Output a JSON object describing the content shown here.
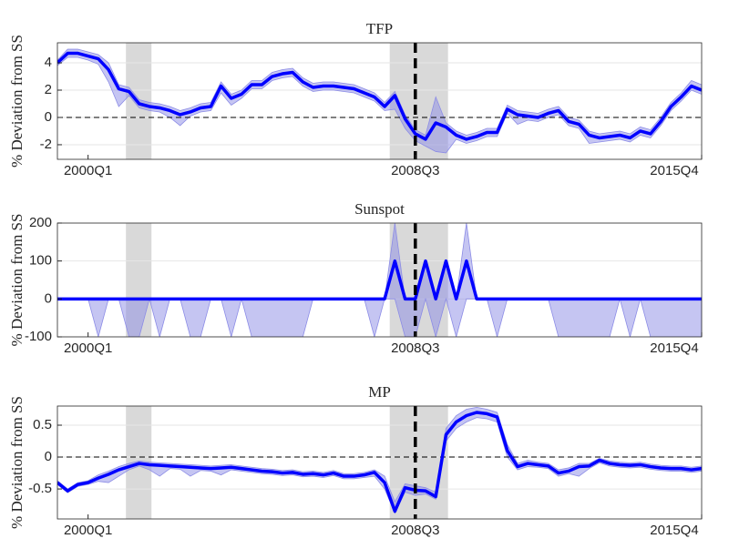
{
  "chart_data": [
    {
      "type": "line",
      "title": "TFP",
      "ylabel": "% Deviation from SS",
      "categories": [
        null,
        null,
        null,
        "2000Q1",
        null,
        null,
        null,
        null,
        null,
        null,
        null,
        null,
        null,
        null,
        null,
        null,
        null,
        null,
        null,
        null,
        null,
        null,
        null,
        null,
        null,
        null,
        null,
        null,
        null,
        null,
        null,
        null,
        null,
        null,
        null,
        "2008Q3",
        null,
        null,
        null,
        null,
        null,
        null,
        null,
        null,
        null,
        null,
        null,
        null,
        null,
        null,
        null,
        null,
        null,
        null,
        null,
        null,
        null,
        null,
        null,
        null,
        null,
        null,
        null,
        "2015Q4"
      ],
      "values": [
        4.0,
        4.7,
        4.7,
        4.5,
        4.3,
        3.5,
        2.1,
        1.9,
        1.0,
        0.8,
        0.7,
        0.5,
        0.2,
        0.4,
        0.7,
        0.8,
        2.3,
        1.4,
        1.7,
        2.4,
        2.4,
        3.0,
        3.2,
        3.3,
        2.6,
        2.2,
        2.3,
        2.3,
        2.2,
        2.1,
        1.8,
        1.5,
        0.8,
        1.6,
        -0.1,
        -1.2,
        -1.6,
        -0.4,
        -0.7,
        -1.3,
        -1.6,
        -1.4,
        -1.1,
        -1.1,
        0.6,
        0.2,
        0.1,
        0.0,
        0.3,
        0.5,
        -0.3,
        -0.5,
        -1.3,
        -1.5,
        -1.4,
        -1.3,
        -1.5,
        -1.0,
        -1.2,
        -0.3,
        0.8,
        1.5,
        2.3,
        2.0
      ],
      "band_lower": [
        3.8,
        4.4,
        4.4,
        4.2,
        3.9,
        2.6,
        0.8,
        1.6,
        0.7,
        0.5,
        0.4,
        0.0,
        -0.6,
        0.1,
        0.4,
        0.5,
        1.8,
        0.9,
        1.4,
        2.1,
        2.1,
        2.7,
        2.9,
        3.0,
        2.3,
        1.9,
        2.0,
        2.0,
        1.9,
        1.8,
        1.5,
        1.2,
        0.5,
        0.6,
        -0.8,
        -1.7,
        -2.1,
        -2.5,
        -2.6,
        -1.6,
        -1.9,
        -1.7,
        -1.4,
        -1.4,
        0.3,
        -0.5,
        -0.2,
        -0.3,
        0.0,
        0.2,
        -0.6,
        -0.8,
        -1.9,
        -1.8,
        -1.7,
        -1.6,
        -1.8,
        -1.3,
        -1.5,
        -0.6,
        0.5,
        1.2,
        2.0,
        1.7
      ],
      "band_upper": [
        4.2,
        5.0,
        5.0,
        4.8,
        4.6,
        4.0,
        2.4,
        2.2,
        1.3,
        1.1,
        1.0,
        0.8,
        0.5,
        0.7,
        1.0,
        1.1,
        2.6,
        1.7,
        2.0,
        2.7,
        2.7,
        3.3,
        3.5,
        3.6,
        2.9,
        2.5,
        2.6,
        2.6,
        2.5,
        2.4,
        2.1,
        1.8,
        1.1,
        1.9,
        0.2,
        -0.9,
        -1.3,
        1.5,
        -0.4,
        -1.0,
        -1.3,
        -1.1,
        -0.8,
        -0.8,
        0.9,
        0.5,
        0.4,
        0.3,
        0.6,
        0.8,
        0.0,
        -0.2,
        -1.0,
        -1.2,
        -1.1,
        -1.0,
        -1.2,
        -0.7,
        -0.9,
        0.0,
        1.1,
        1.8,
        2.7,
        2.4
      ],
      "color": "#0000ff",
      "band_color": "#8c8ce6",
      "shade_color": "#d9d9d9",
      "shaded": [
        [
          6.7,
          9.2
        ],
        [
          32.5,
          38.2
        ]
      ],
      "vline": 35,
      "hline": 0,
      "ylim": [
        -3.07,
        5.47
      ],
      "yticks": [
        -2,
        0,
        2,
        4
      ],
      "grid": true
    },
    {
      "type": "line",
      "title": "Sunspot",
      "ylabel": "% Deviation from SS",
      "categories": [
        null,
        null,
        null,
        "2000Q1",
        null,
        null,
        null,
        null,
        null,
        null,
        null,
        null,
        null,
        null,
        null,
        null,
        null,
        null,
        null,
        null,
        null,
        null,
        null,
        null,
        null,
        null,
        null,
        null,
        null,
        null,
        null,
        null,
        null,
        null,
        null,
        "2008Q3",
        null,
        null,
        null,
        null,
        null,
        null,
        null,
        null,
        null,
        null,
        null,
        null,
        null,
        null,
        null,
        null,
        null,
        null,
        null,
        null,
        null,
        null,
        null,
        null,
        null,
        null,
        null,
        "2015Q4"
      ],
      "values": [
        0,
        0,
        0,
        0,
        0,
        0,
        0,
        0,
        0,
        0,
        0,
        0,
        0,
        0,
        0,
        0,
        0,
        0,
        0,
        0,
        0,
        0,
        0,
        0,
        0,
        0,
        0,
        0,
        0,
        0,
        0,
        0,
        0,
        100,
        0,
        0,
        100,
        0,
        100,
        0,
        100,
        0,
        0,
        0,
        0,
        0,
        0,
        0,
        0,
        0,
        0,
        0,
        0,
        0,
        0,
        0,
        0,
        0,
        0,
        0,
        0,
        0,
        0,
        0
      ],
      "band_lower": [
        0,
        0,
        0,
        0,
        -100,
        0,
        0,
        -100,
        -100,
        0,
        -100,
        0,
        0,
        -100,
        -100,
        0,
        0,
        -100,
        0,
        -100,
        -100,
        -100,
        -100,
        -100,
        -100,
        0,
        0,
        0,
        0,
        0,
        0,
        -100,
        0,
        0,
        -100,
        -100,
        0,
        -100,
        0,
        -100,
        0,
        0,
        0,
        -100,
        0,
        0,
        0,
        0,
        0,
        -100,
        -100,
        -100,
        -100,
        -100,
        -100,
        0,
        -100,
        0,
        -100,
        -100,
        -100,
        -100,
        -100,
        -100
      ],
      "band_upper": [
        0,
        0,
        0,
        0,
        0,
        0,
        0,
        0,
        0,
        0,
        0,
        0,
        0,
        0,
        0,
        0,
        0,
        0,
        0,
        0,
        0,
        0,
        0,
        0,
        0,
        0,
        0,
        0,
        0,
        0,
        0,
        0,
        0,
        200,
        0,
        0,
        100,
        0,
        100,
        0,
        200,
        0,
        0,
        0,
        0,
        0,
        0,
        0,
        0,
        0,
        0,
        0,
        0,
        0,
        0,
        0,
        0,
        0,
        0,
        0,
        0,
        0,
        0,
        0
      ],
      "color": "#0000ff",
      "band_color": "#8c8ce6",
      "shade_color": "#d9d9d9",
      "shaded": [
        [
          6.7,
          9.2
        ],
        [
          32.5,
          38.2
        ]
      ],
      "vline": 35,
      "ylim": [
        -100,
        200
      ],
      "yticks": [
        -100,
        0,
        100,
        200
      ],
      "grid": true
    },
    {
      "type": "line",
      "title": "MP",
      "ylabel": "% Deviation from SS",
      "categories": [
        null,
        null,
        null,
        "2000Q1",
        null,
        null,
        null,
        null,
        null,
        null,
        null,
        null,
        null,
        null,
        null,
        null,
        null,
        null,
        null,
        null,
        null,
        null,
        null,
        null,
        null,
        null,
        null,
        null,
        null,
        null,
        null,
        null,
        null,
        null,
        null,
        "2008Q3",
        null,
        null,
        null,
        null,
        null,
        null,
        null,
        null,
        null,
        null,
        null,
        null,
        null,
        null,
        null,
        null,
        null,
        null,
        null,
        null,
        null,
        null,
        null,
        null,
        null,
        null,
        null,
        "2015Q4"
      ],
      "values": [
        -0.4,
        -0.53,
        -0.43,
        -0.4,
        -0.33,
        -0.27,
        -0.2,
        -0.15,
        -0.1,
        -0.12,
        -0.13,
        -0.14,
        -0.15,
        -0.16,
        -0.17,
        -0.18,
        -0.17,
        -0.16,
        -0.18,
        -0.2,
        -0.22,
        -0.23,
        -0.25,
        -0.24,
        -0.27,
        -0.26,
        -0.28,
        -0.25,
        -0.3,
        -0.3,
        -0.28,
        -0.24,
        -0.4,
        -0.85,
        -0.48,
        -0.52,
        -0.53,
        -0.62,
        0.35,
        0.55,
        0.65,
        0.7,
        0.68,
        0.63,
        0.1,
        -0.15,
        -0.1,
        -0.12,
        -0.14,
        -0.25,
        -0.22,
        -0.15,
        -0.14,
        -0.05,
        -0.1,
        -0.12,
        -0.13,
        -0.12,
        -0.15,
        -0.17,
        -0.18,
        -0.18,
        -0.2,
        -0.18
      ],
      "band_lower": [
        -0.43,
        -0.56,
        -0.46,
        -0.43,
        -0.38,
        -0.4,
        -0.3,
        -0.2,
        -0.14,
        -0.2,
        -0.3,
        -0.18,
        -0.19,
        -0.3,
        -0.21,
        -0.22,
        -0.28,
        -0.2,
        -0.22,
        -0.24,
        -0.26,
        -0.27,
        -0.29,
        -0.28,
        -0.31,
        -0.3,
        -0.32,
        -0.29,
        -0.34,
        -0.34,
        -0.32,
        -0.3,
        -0.5,
        -0.88,
        -0.55,
        -0.6,
        -0.58,
        -0.66,
        0.25,
        0.45,
        0.55,
        0.62,
        0.6,
        0.55,
        0.0,
        -0.2,
        -0.15,
        -0.16,
        -0.18,
        -0.3,
        -0.26,
        -0.3,
        -0.18,
        -0.09,
        -0.14,
        -0.16,
        -0.17,
        -0.16,
        -0.19,
        -0.21,
        -0.22,
        -0.22,
        -0.24,
        -0.22
      ],
      "band_upper": [
        -0.37,
        -0.5,
        -0.4,
        -0.37,
        -0.28,
        -0.22,
        -0.15,
        -0.1,
        -0.06,
        -0.08,
        -0.09,
        -0.1,
        -0.11,
        -0.12,
        -0.13,
        -0.14,
        -0.13,
        -0.12,
        -0.14,
        -0.16,
        -0.18,
        -0.19,
        -0.21,
        -0.2,
        -0.23,
        -0.22,
        -0.24,
        -0.21,
        -0.26,
        -0.26,
        -0.24,
        -0.2,
        -0.3,
        -0.7,
        -0.42,
        -0.45,
        -0.48,
        -0.55,
        0.45,
        0.65,
        0.75,
        0.78,
        0.75,
        0.7,
        0.2,
        -0.1,
        -0.05,
        -0.08,
        -0.1,
        -0.2,
        -0.17,
        -0.1,
        -0.1,
        -0.02,
        -0.06,
        -0.08,
        -0.09,
        -0.08,
        -0.11,
        -0.13,
        -0.14,
        -0.14,
        -0.16,
        -0.14
      ],
      "color": "#0000ff",
      "band_color": "#8c8ce6",
      "shade_color": "#d9d9d9",
      "shaded": [
        [
          6.7,
          9.2
        ],
        [
          32.5,
          38.2
        ]
      ],
      "vline": 35,
      "hline": 0,
      "ylim": [
        -0.97,
        0.8
      ],
      "yticks": [
        -0.5,
        0,
        0.5
      ],
      "grid": true
    }
  ]
}
